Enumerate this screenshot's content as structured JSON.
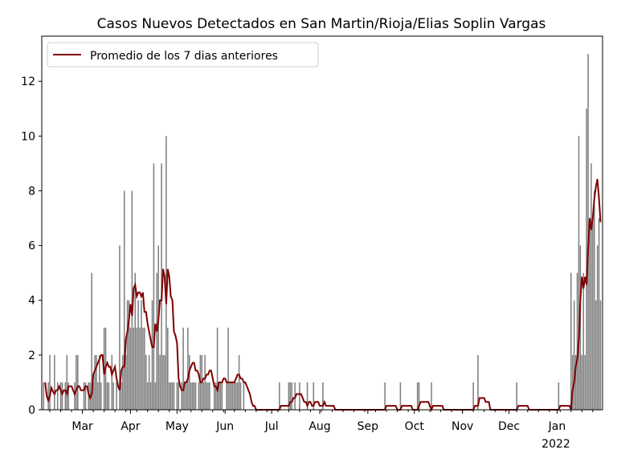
{
  "chart_data": {
    "type": "bar",
    "title": "Casos Nuevos Detectados en San Martin/Rioja/Elias Soplin Vargas",
    "xlabel": "",
    "ylabel": "",
    "start_date": "2021-02-04",
    "ylim": [
      0,
      13.65
    ],
    "yticks": [
      0,
      2,
      4,
      6,
      8,
      10,
      12
    ],
    "xticks": [
      {
        "label": "Mar",
        "day": 25
      },
      {
        "label": "Apr",
        "day": 56
      },
      {
        "label": "May",
        "day": 86
      },
      {
        "label": "Jun",
        "day": 117
      },
      {
        "label": "Jul",
        "day": 147
      },
      {
        "label": "Aug",
        "day": 178
      },
      {
        "label": "Sep",
        "day": 209
      },
      {
        "label": "Oct",
        "day": 239
      },
      {
        "label": "Nov",
        "day": 270
      },
      {
        "label": "Dec",
        "day": 300
      },
      {
        "label": "Jan",
        "day": 331
      }
    ],
    "year_label": "2022",
    "bar_color": "#808080",
    "line_color": "#800000",
    "legend": {
      "label": "Promedio de los 7 dias anteriores",
      "placement": "top-left"
    },
    "rolling_window": 7,
    "values": [
      1,
      0,
      0,
      1,
      2,
      0,
      0,
      2,
      0,
      1,
      0,
      1,
      1,
      0,
      1,
      2,
      1,
      0,
      0,
      0,
      1,
      2,
      2,
      0,
      0,
      0,
      1,
      1,
      0,
      1,
      1,
      5,
      1,
      2,
      2,
      1,
      2,
      1,
      0,
      3,
      3,
      1,
      1,
      0,
      2,
      1,
      0,
      1,
      0,
      6,
      1,
      2,
      8,
      2,
      4,
      4,
      3,
      8,
      3,
      5,
      3,
      4,
      3,
      4,
      3,
      3,
      2,
      1,
      2,
      1,
      4,
      9,
      1,
      5,
      6,
      2,
      9,
      2,
      2,
      10,
      3,
      1,
      1,
      1,
      1,
      0,
      1,
      1,
      0,
      1,
      3,
      1,
      1,
      3,
      2,
      1,
      1,
      1,
      1,
      0,
      1,
      2,
      2,
      1,
      2,
      1,
      1,
      1,
      0,
      0,
      1,
      1,
      3,
      1,
      1,
      1,
      0,
      0,
      1,
      3,
      1,
      1,
      1,
      1,
      1,
      1,
      2,
      1,
      0,
      1,
      0,
      0,
      0,
      0,
      0,
      0,
      0,
      0,
      0,
      0,
      0,
      0,
      0,
      0,
      0,
      0,
      0,
      0,
      0,
      0,
      0,
      0,
      1,
      0,
      0,
      0,
      0,
      0,
      1,
      1,
      1,
      0,
      1,
      0,
      0,
      1,
      0,
      0,
      0,
      0,
      1,
      0,
      0,
      0,
      1,
      0,
      0,
      0,
      0,
      0,
      1,
      0,
      0,
      0,
      0,
      0,
      0,
      0,
      0,
      0,
      0,
      0,
      0,
      0,
      0,
      0,
      0,
      0,
      0,
      0,
      0,
      0,
      0,
      0,
      0,
      0,
      0,
      0,
      0,
      0,
      0,
      0,
      0,
      0,
      0,
      0,
      0,
      0,
      0,
      0,
      1,
      0,
      0,
      0,
      0,
      0,
      0,
      0,
      0,
      0,
      1,
      0,
      0,
      0,
      0,
      0,
      0,
      0,
      0,
      0,
      0,
      1,
      1,
      0,
      0,
      0,
      0,
      0,
      0,
      0,
      1,
      0,
      0,
      0,
      0,
      0,
      0,
      0,
      0,
      0,
      0,
      0,
      0,
      0,
      0,
      0,
      0,
      0,
      0,
      0,
      0,
      0,
      0,
      0,
      0,
      0,
      0,
      1,
      0,
      0,
      2,
      0,
      0,
      0,
      0,
      0,
      0,
      0,
      0,
      0,
      0,
      0,
      0,
      0,
      0,
      0,
      0,
      0,
      0,
      0,
      0,
      0,
      0,
      0,
      0,
      1,
      0,
      0,
      0,
      0,
      0,
      0,
      0,
      0,
      0,
      0,
      0,
      0,
      0,
      0,
      0,
      0,
      0,
      0,
      0,
      0,
      0,
      0,
      0,
      0,
      0,
      0,
      1,
      0,
      0,
      0,
      0,
      0,
      0,
      0,
      5,
      2,
      4,
      2,
      5,
      10,
      6,
      2,
      5,
      2,
      11,
      13,
      7,
      9,
      7,
      8,
      4,
      6,
      7,
      4
    ]
  }
}
